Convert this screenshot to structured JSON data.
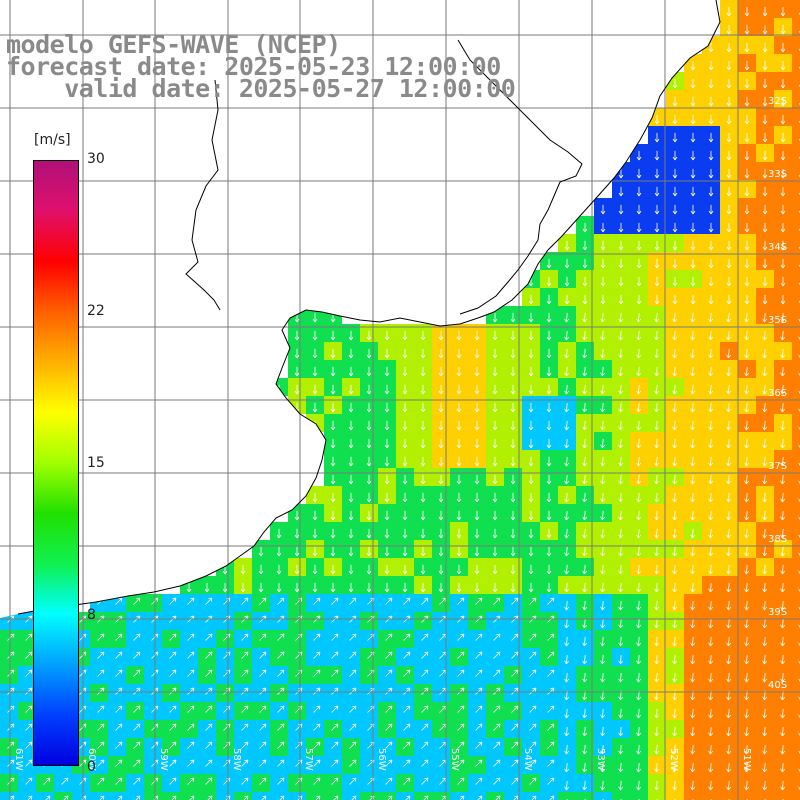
{
  "map": {
    "title_line1": "modelo GEFS-WAVE (NCEP)",
    "title_line2": "forecast date: 2025-05-23 12:00:00",
    "title_line3": "    valid date: 2025-05-27 12:00:00",
    "unit": "[m/s]",
    "colorbar_ticks": [
      "30",
      "22",
      "15",
      "8",
      "0"
    ],
    "colorbar_colors": [
      "#b0107a",
      "#e0106a",
      "#ff0000",
      "#ff6000",
      "#ffb000",
      "#ffff00",
      "#a0ff00",
      "#20e000",
      "#10f050",
      "#00ffff",
      "#00a0ff",
      "#0040ff",
      "#0000e0"
    ],
    "lat_labels": [
      "32S",
      "33S",
      "34S",
      "35S",
      "36S",
      "37S",
      "38S",
      "39S",
      "40S"
    ],
    "lon_labels": [
      "61W",
      "60W",
      "59W",
      "58W",
      "57W",
      "56W",
      "55W",
      "54W",
      "53W",
      "52W",
      "51W"
    ],
    "land_color": "#ffffff",
    "grid_color": "#7a7a7a",
    "coast_color": "#000000",
    "arrow_color": "#ffffff",
    "field_colors": {
      "low": "#0a3cf0",
      "mid_low": "#00c8ff",
      "mid": "#10e050",
      "mid_high": "#b0f000",
      "high": "#ffd000",
      "very_high": "#ff8000"
    }
  }
}
